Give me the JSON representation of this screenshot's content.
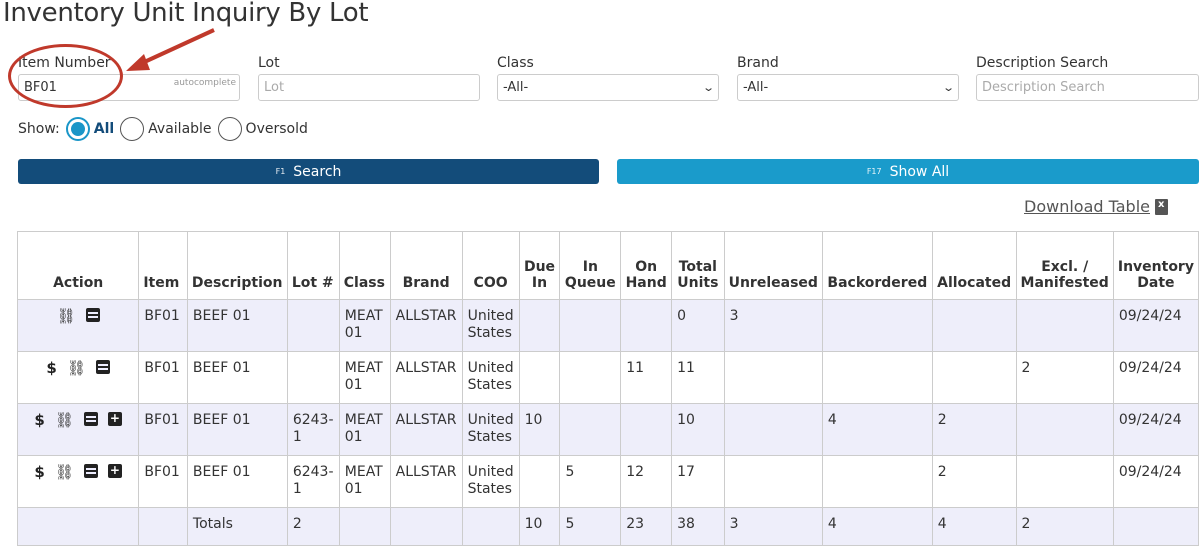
{
  "page": {
    "title": "Inventory Unit Inquiry By Lot"
  },
  "filters": {
    "item_number": {
      "label": "Item Number",
      "value": "BF01",
      "hint": "autocomplete"
    },
    "lot": {
      "label": "Lot",
      "placeholder": "Lot"
    },
    "class": {
      "label": "Class",
      "selected": "-All-"
    },
    "brand": {
      "label": "Brand",
      "selected": "-All-"
    },
    "description": {
      "label": "Description Search",
      "placeholder": "Description Search"
    }
  },
  "show": {
    "label": "Show:",
    "options": [
      "All",
      "Available",
      "Oversold"
    ],
    "selected": "All"
  },
  "buttons": {
    "search": {
      "key": "F1",
      "label": "Search"
    },
    "show_all": {
      "key": "F17",
      "label": "Show All"
    }
  },
  "download": {
    "label": "Download Table"
  },
  "table": {
    "headers": {
      "action": "Action",
      "item": "Item",
      "description": "Description",
      "lot": "Lot #",
      "class": "Class",
      "brand": "Brand",
      "coo": "COO",
      "due_in_1": "Due",
      "due_in_2": "In",
      "in_queue_1": "In",
      "in_queue_2": "Queue",
      "on_hand_1": "On",
      "on_hand_2": "Hand",
      "total_units_1": "Total",
      "total_units_2": "Units",
      "unreleased": "Unreleased",
      "backordered": "Backordered",
      "allocated": "Allocated",
      "excl_1": "Excl. /",
      "excl_2": "Manifested",
      "inv_date_1": "Inventory",
      "inv_date_2": "Date"
    },
    "rows": [
      {
        "item": "BF01",
        "description": "BEEF 01",
        "lot": "",
        "class": "MEAT 01",
        "brand": "ALLSTAR",
        "coo": "United States",
        "due_in": "",
        "in_queue": "",
        "on_hand": "",
        "total_units": "0",
        "unreleased": "3",
        "backordered": "",
        "allocated": "",
        "excl_manifested": "",
        "inventory_date": "09/24/24"
      },
      {
        "item": "BF01",
        "description": "BEEF 01",
        "lot": "",
        "class": "MEAT 01",
        "brand": "ALLSTAR",
        "coo": "United States",
        "due_in": "",
        "in_queue": "",
        "on_hand": "11",
        "total_units": "11",
        "unreleased": "",
        "backordered": "",
        "allocated": "",
        "excl_manifested": "2",
        "inventory_date": "09/24/24"
      },
      {
        "item": "BF01",
        "description": "BEEF 01",
        "lot": "6243-1",
        "class": "MEAT 01",
        "brand": "ALLSTAR",
        "coo": "United States",
        "due_in": "10",
        "in_queue": "",
        "on_hand": "",
        "total_units": "10",
        "unreleased": "",
        "backordered": "4",
        "allocated": "2",
        "excl_manifested": "",
        "inventory_date": "09/24/24"
      },
      {
        "item": "BF01",
        "description": "BEEF 01",
        "lot": "6243-1",
        "class": "MEAT 01",
        "brand": "ALLSTAR",
        "coo": "United States",
        "due_in": "",
        "in_queue": "5",
        "on_hand": "12",
        "total_units": "17",
        "unreleased": "",
        "backordered": "",
        "allocated": "2",
        "excl_manifested": "",
        "inventory_date": "09/24/24"
      }
    ],
    "totals": {
      "label": "Totals",
      "lot": "2",
      "due_in": "10",
      "in_queue": "5",
      "on_hand": "23",
      "total_units": "38",
      "unreleased": "3",
      "backordered": "4",
      "allocated": "4",
      "excl_manifested": "2"
    }
  },
  "colors": {
    "primary": "#134c7a",
    "accent": "#1a9bcb",
    "row_shade": "#eeeefa",
    "annotation": "#c0392b"
  }
}
